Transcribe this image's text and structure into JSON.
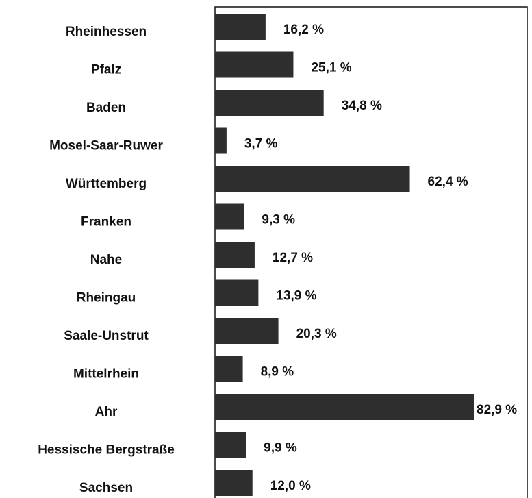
{
  "chart_data": {
    "type": "bar",
    "orientation": "horizontal",
    "categories": [
      "Rheinhessen",
      "Pfalz",
      "Baden",
      "Mosel-Saar-Ruwer",
      "Württemberg",
      "Franken",
      "Nahe",
      "Rheingau",
      "Saale-Unstrut",
      "Mittelrhein",
      "Ahr",
      "Hessische Bergstraße",
      "Sachsen"
    ],
    "values": [
      16.2,
      25.1,
      34.8,
      3.7,
      62.4,
      9.3,
      12.7,
      13.9,
      20.3,
      8.9,
      82.9,
      9.9,
      12.0
    ],
    "value_labels": [
      "16,2 %",
      "25,1 %",
      "34,8 %",
      "3,7 %",
      "62,4 %",
      "9,3 %",
      "12,7 %",
      "13,9 %",
      "20,3 %",
      "8,9 %",
      "82,9 %",
      "9,9 %",
      "12,0 %"
    ],
    "color": "#2e2e2e",
    "xlim": [
      0,
      100
    ]
  }
}
